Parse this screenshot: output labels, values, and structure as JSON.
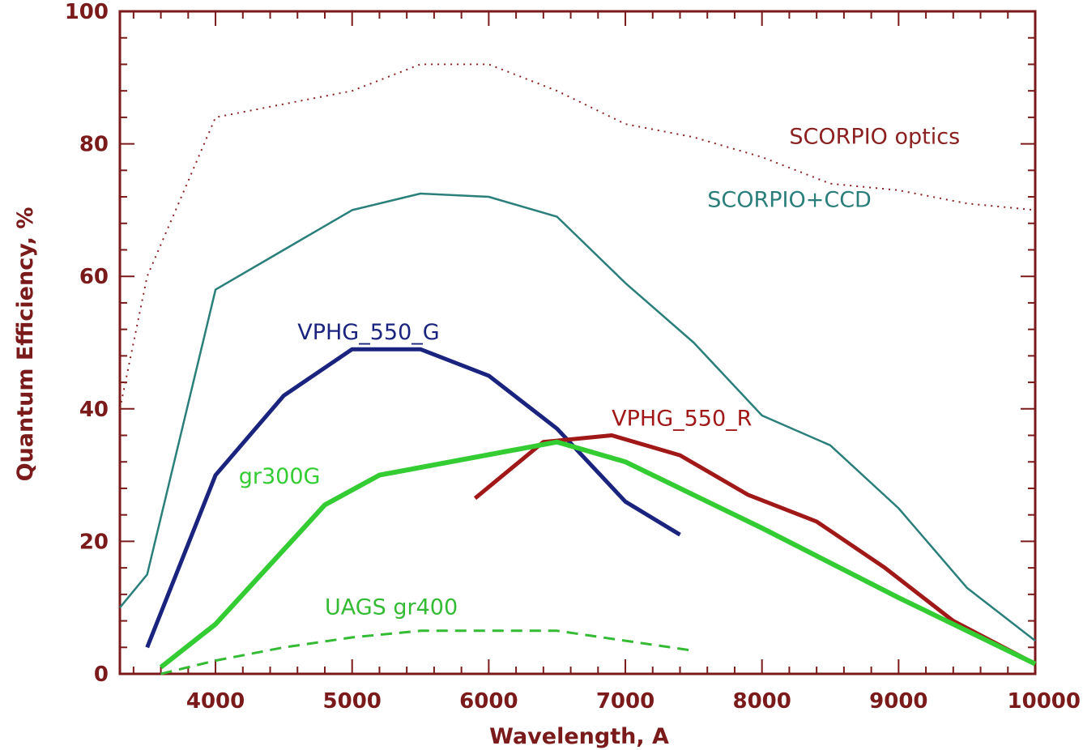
{
  "chart_data": {
    "type": "line",
    "title": "",
    "xlabel": "Wavelength, A",
    "ylabel": "Quantum Efficiency, %",
    "xlim": [
      3300,
      10000
    ],
    "ylim": [
      0,
      100
    ],
    "xticks": [
      4000,
      5000,
      6000,
      7000,
      8000,
      9000,
      10000
    ],
    "yticks": [
      0,
      20,
      40,
      60,
      80,
      100
    ],
    "frame_color": "#7a1a1a",
    "series": [
      {
        "name": "SCORPIO optics",
        "color": "#8b2020",
        "style": "dotted",
        "width": 2,
        "label_at": [
          8200,
          80
        ],
        "x": [
          3300,
          3500,
          4000,
          4500,
          5000,
          5500,
          6000,
          6500,
          7000,
          7500,
          8000,
          8500,
          9000,
          9500,
          10000
        ],
        "y": [
          40,
          60,
          84,
          86,
          88,
          92,
          92,
          88,
          83,
          81,
          78,
          74,
          73,
          71,
          70
        ]
      },
      {
        "name": "SCORPIO+CCD",
        "color": "#2a7f7a",
        "style": "solid",
        "width": 2.5,
        "label_at": [
          7600,
          70.5
        ],
        "x": [
          3300,
          3500,
          4000,
          4500,
          5000,
          5500,
          6000,
          6500,
          7000,
          7500,
          8000,
          8500,
          9000,
          9500,
          10000
        ],
        "y": [
          10,
          15,
          58,
          64,
          70,
          72.5,
          72,
          69,
          59,
          50,
          39,
          34.5,
          25,
          13,
          5
        ]
      },
      {
        "name": "VPHG_550_G",
        "color": "#1a237e",
        "style": "solid",
        "width": 5,
        "label_at": [
          4600,
          50.5
        ],
        "x": [
          3500,
          4000,
          4500,
          5000,
          5500,
          6000,
          6500,
          7000,
          7400
        ],
        "y": [
          4,
          30,
          42,
          49,
          49,
          45,
          37,
          26,
          21
        ]
      },
      {
        "name": "VPHG_550_R",
        "color": "#a01818",
        "style": "solid",
        "width": 5,
        "label_at": [
          6900,
          37.5
        ],
        "x": [
          5900,
          6400,
          6900,
          7400,
          7900,
          8400,
          8900,
          9400,
          10000
        ],
        "y": [
          26.5,
          35,
          36,
          33,
          27,
          23,
          16,
          8,
          1.5
        ]
      },
      {
        "name": "gr300G",
        "color": "#33cc33",
        "style": "solid",
        "width": 6,
        "label_at": [
          4170,
          28.7
        ],
        "x": [
          3600,
          4000,
          4800,
          5200,
          6500,
          7000,
          8000,
          9000,
          10000
        ],
        "y": [
          1,
          7.5,
          25.5,
          30,
          35,
          32,
          22,
          11.5,
          1.5
        ]
      },
      {
        "name": "UAGS gr400",
        "color": "#33bb33",
        "style": "dashed",
        "width": 3,
        "label_at": [
          4800,
          9
        ],
        "x": [
          3600,
          4000,
          4500,
          5000,
          5500,
          6000,
          6500,
          7000,
          7500
        ],
        "y": [
          0,
          2,
          4,
          5.5,
          6.5,
          6.5,
          6.5,
          5,
          3.5
        ]
      }
    ]
  }
}
